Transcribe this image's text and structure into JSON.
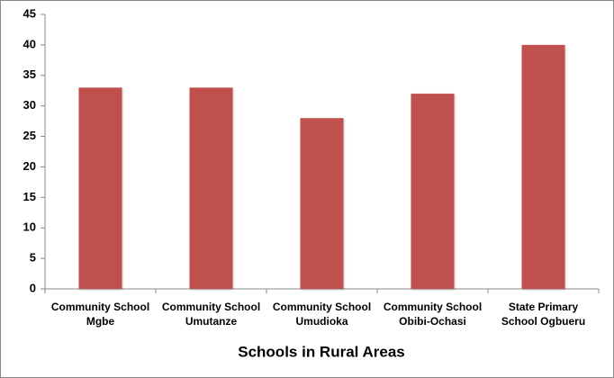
{
  "chart_data": {
    "type": "bar",
    "x_label": "Schools in Rural Areas",
    "categories": [
      [
        "Community School",
        "Mgbe"
      ],
      [
        "Community School",
        "Umutanze"
      ],
      [
        "Community School",
        "Umudioka"
      ],
      [
        "Community School",
        "Obibi-Ochasi"
      ],
      [
        "State Primary",
        "School Ogbueru"
      ]
    ],
    "values": [
      33,
      33,
      28,
      32,
      40
    ],
    "color": "#c0504d",
    "ylim": [
      0,
      45
    ],
    "yticks": [
      0,
      5,
      10,
      15,
      20,
      25,
      30,
      35,
      40,
      45
    ],
    "grid": false
  }
}
